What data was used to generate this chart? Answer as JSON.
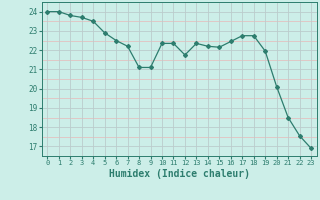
{
  "x": [
    0,
    1,
    2,
    3,
    4,
    5,
    6,
    7,
    8,
    9,
    10,
    11,
    12,
    13,
    14,
    15,
    16,
    17,
    18,
    19,
    20,
    21,
    22,
    23
  ],
  "y": [
    24.0,
    24.0,
    23.8,
    23.7,
    23.5,
    22.9,
    22.5,
    22.2,
    21.1,
    21.1,
    22.35,
    22.35,
    21.75,
    22.35,
    22.2,
    22.15,
    22.45,
    22.75,
    22.75,
    21.95,
    20.1,
    18.5,
    17.55,
    16.9
  ],
  "line_color": "#2d7d6e",
  "marker": "D",
  "marker_size": 2.0,
  "bg_color": "#cceee8",
  "grid_major_color": "#bbcccc",
  "grid_minor_color": "#e8b8b8",
  "tick_color": "#2d7d6e",
  "xlabel": "Humidex (Indice chaleur)",
  "xlabel_fontsize": 7,
  "ylabel_ticks": [
    17,
    18,
    19,
    20,
    21,
    22,
    23,
    24
  ],
  "ylim": [
    16.5,
    24.5
  ],
  "xlim": [
    -0.5,
    23.5
  ],
  "xticks": [
    0,
    1,
    2,
    3,
    4,
    5,
    6,
    7,
    8,
    9,
    10,
    11,
    12,
    13,
    14,
    15,
    16,
    17,
    18,
    19,
    20,
    21,
    22,
    23
  ]
}
